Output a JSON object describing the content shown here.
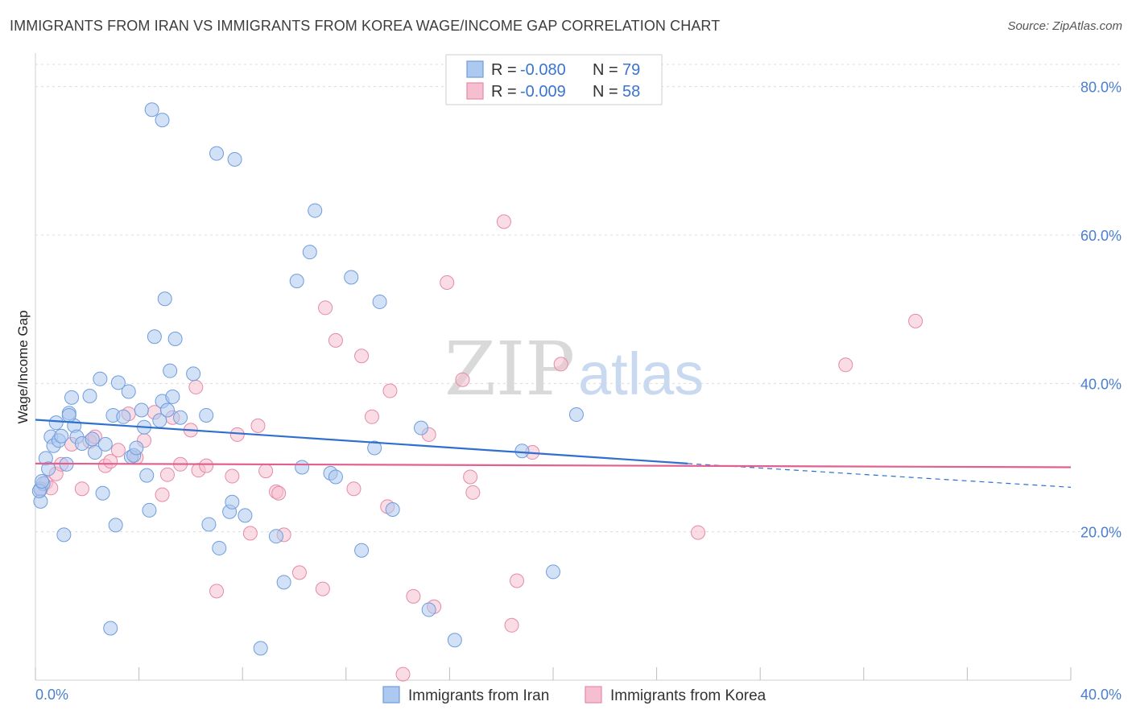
{
  "header": {
    "title": "IMMIGRANTS FROM IRAN VS IMMIGRANTS FROM KOREA WAGE/INCOME GAP CORRELATION CHART",
    "source": "Source: ZipAtlas.com"
  },
  "watermark": {
    "zip": "ZIP",
    "atlas": "atlas"
  },
  "legend_box": {
    "rows": [
      {
        "r_label": "R =",
        "r_value": "-0.080",
        "n_label": "N =",
        "n_value": "79"
      },
      {
        "r_label": "R =",
        "r_value": "-0.009",
        "n_label": "N =",
        "n_value": "58"
      }
    ]
  },
  "bottom_legend": [
    "Immigrants from Iran",
    "Immigrants from Korea"
  ],
  "colors": {
    "iran_fill": "#adc9ef",
    "iran_stroke": "#6e9ddd",
    "iran_line": "#2f6fd0",
    "korea_fill": "#f6bfd0",
    "korea_stroke": "#e58aa8",
    "korea_line": "#e26090",
    "grid": "#dcdcdc",
    "tick_text": "#4a7fd0"
  },
  "chart_data": {
    "type": "scatter",
    "title": "IMMIGRANTS FROM IRAN VS IMMIGRANTS FROM KOREA WAGE/INCOME GAP CORRELATION CHART",
    "xlabel": "",
    "ylabel": "Wage/Income Gap",
    "xlim": [
      0,
      40
    ],
    "ylim": [
      0,
      83
    ],
    "x_tick_labels": [
      "0.0%",
      "40.0%"
    ],
    "y_ticks": [
      20,
      40,
      60,
      80
    ],
    "y_tick_labels": [
      "20.0%",
      "40.0%",
      "60.0%",
      "80.0%"
    ],
    "grid": true,
    "legend_position": "top-center",
    "series": [
      {
        "name": "Immigrants from Iran",
        "r": -0.08,
        "n": 79,
        "trend": {
          "x": [
            0,
            25.2
          ],
          "y": [
            35.1,
            29.2
          ],
          "dashed_to": [
            40,
            26.0
          ]
        },
        "points": [
          [
            0.2,
            24.1
          ],
          [
            0.2,
            25.8
          ],
          [
            0.3,
            26.5
          ],
          [
            0.4,
            29.9
          ],
          [
            0.5,
            28.5
          ],
          [
            0.6,
            32.8
          ],
          [
            0.7,
            31.6
          ],
          [
            0.8,
            34.7
          ],
          [
            0.9,
            32.3
          ],
          [
            1.0,
            32.9
          ],
          [
            1.1,
            19.6
          ],
          [
            1.2,
            29.1
          ],
          [
            1.3,
            36.0
          ],
          [
            1.4,
            38.1
          ],
          [
            1.5,
            34.3
          ],
          [
            1.6,
            32.8
          ],
          [
            1.8,
            31.9
          ],
          [
            1.3,
            35.7
          ],
          [
            2.1,
            38.3
          ],
          [
            2.2,
            32.5
          ],
          [
            2.3,
            30.7
          ],
          [
            2.5,
            40.6
          ],
          [
            2.6,
            25.2
          ],
          [
            2.7,
            31.8
          ],
          [
            2.9,
            7.0
          ],
          [
            3.0,
            35.7
          ],
          [
            3.1,
            20.9
          ],
          [
            3.2,
            40.1
          ],
          [
            3.4,
            35.5
          ],
          [
            3.6,
            38.9
          ],
          [
            3.7,
            30.1
          ],
          [
            3.8,
            30.3
          ],
          [
            3.9,
            31.3
          ],
          [
            4.1,
            36.4
          ],
          [
            4.2,
            34.1
          ],
          [
            4.3,
            27.6
          ],
          [
            4.4,
            22.9
          ],
          [
            4.5,
            76.9
          ],
          [
            4.6,
            46.3
          ],
          [
            4.8,
            35.0
          ],
          [
            4.9,
            37.6
          ],
          [
            4.9,
            75.5
          ],
          [
            5.0,
            51.4
          ],
          [
            5.1,
            36.4
          ],
          [
            5.2,
            41.7
          ],
          [
            5.3,
            38.2
          ],
          [
            5.4,
            46.0
          ],
          [
            5.6,
            35.4
          ],
          [
            6.1,
            41.3
          ],
          [
            6.6,
            35.7
          ],
          [
            6.7,
            21.0
          ],
          [
            7.0,
            71.0
          ],
          [
            7.1,
            17.8
          ],
          [
            7.5,
            22.7
          ],
          [
            7.6,
            24.0
          ],
          [
            7.7,
            70.2
          ],
          [
            8.1,
            22.2
          ],
          [
            8.7,
            4.3
          ],
          [
            9.3,
            19.4
          ],
          [
            9.6,
            13.2
          ],
          [
            10.1,
            53.8
          ],
          [
            10.3,
            28.7
          ],
          [
            10.6,
            57.7
          ],
          [
            10.8,
            63.3
          ],
          [
            11.4,
            27.9
          ],
          [
            11.6,
            27.4
          ],
          [
            12.2,
            54.3
          ],
          [
            12.6,
            17.5
          ],
          [
            13.1,
            31.3
          ],
          [
            13.3,
            51.0
          ],
          [
            13.8,
            23.0
          ],
          [
            14.9,
            34.0
          ],
          [
            15.2,
            9.5
          ],
          [
            16.2,
            5.4
          ],
          [
            18.8,
            30.9
          ],
          [
            20.0,
            14.6
          ],
          [
            20.9,
            35.8
          ],
          [
            0.15,
            25.5
          ],
          [
            0.25,
            26.8
          ]
        ]
      },
      {
        "name": "Immigrants from Korea",
        "r": -0.009,
        "n": 58,
        "trend": {
          "x": [
            0,
            40
          ],
          "y": [
            29.2,
            28.7
          ]
        },
        "points": [
          [
            0.2,
            25.7
          ],
          [
            0.4,
            26.6
          ],
          [
            0.6,
            25.9
          ],
          [
            0.8,
            27.8
          ],
          [
            1.0,
            29.1
          ],
          [
            1.4,
            31.8
          ],
          [
            1.8,
            25.8
          ],
          [
            2.1,
            32.2
          ],
          [
            2.3,
            32.8
          ],
          [
            2.7,
            28.9
          ],
          [
            2.9,
            29.5
          ],
          [
            3.2,
            31.0
          ],
          [
            3.6,
            35.9
          ],
          [
            3.9,
            30.0
          ],
          [
            4.2,
            32.3
          ],
          [
            4.6,
            36.1
          ],
          [
            4.9,
            25.0
          ],
          [
            5.1,
            27.7
          ],
          [
            5.3,
            35.4
          ],
          [
            5.6,
            29.1
          ],
          [
            6.0,
            33.7
          ],
          [
            6.2,
            39.5
          ],
          [
            6.3,
            28.3
          ],
          [
            6.6,
            28.9
          ],
          [
            7.0,
            12.0
          ],
          [
            7.6,
            27.5
          ],
          [
            7.8,
            33.1
          ],
          [
            8.3,
            19.8
          ],
          [
            8.6,
            34.3
          ],
          [
            8.9,
            28.2
          ],
          [
            9.3,
            25.4
          ],
          [
            9.4,
            25.2
          ],
          [
            9.6,
            19.6
          ],
          [
            10.2,
            14.5
          ],
          [
            11.1,
            12.3
          ],
          [
            11.2,
            50.2
          ],
          [
            11.6,
            45.8
          ],
          [
            12.3,
            25.8
          ],
          [
            12.6,
            43.7
          ],
          [
            13.0,
            35.5
          ],
          [
            13.6,
            23.4
          ],
          [
            13.7,
            39.0
          ],
          [
            14.2,
            0.8
          ],
          [
            14.6,
            11.3
          ],
          [
            15.2,
            33.1
          ],
          [
            15.4,
            9.9
          ],
          [
            15.9,
            53.6
          ],
          [
            16.5,
            40.5
          ],
          [
            16.8,
            27.4
          ],
          [
            16.9,
            25.3
          ],
          [
            18.1,
            61.8
          ],
          [
            18.4,
            7.4
          ],
          [
            18.6,
            13.4
          ],
          [
            19.2,
            30.7
          ],
          [
            20.3,
            42.6
          ],
          [
            25.6,
            19.9
          ],
          [
            31.3,
            42.5
          ],
          [
            34.0,
            48.4
          ]
        ]
      }
    ]
  }
}
